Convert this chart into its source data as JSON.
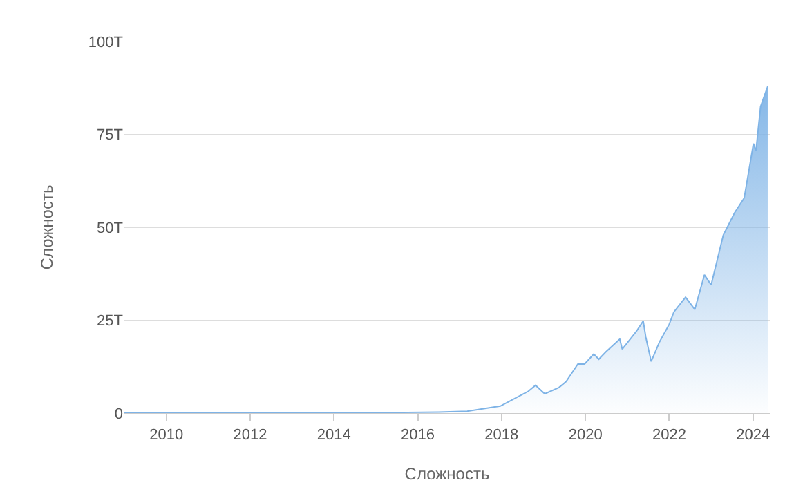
{
  "chart_data": {
    "type": "area",
    "ylabel": "Сложность",
    "xlabel": "Сложность",
    "x": [
      2009.0,
      2012.0,
      2015.0,
      2016.5,
      2017.18,
      2017.97,
      2018.64,
      2018.81,
      2019.03,
      2019.37,
      2019.54,
      2019.82,
      2019.98,
      2020.2,
      2020.32,
      2020.49,
      2020.82,
      2020.88,
      2021.21,
      2021.38,
      2021.44,
      2021.57,
      2021.77,
      2022.0,
      2022.11,
      2022.39,
      2022.61,
      2022.84,
      2023.0,
      2023.29,
      2023.56,
      2023.79,
      2024.01,
      2024.07,
      2024.18,
      2024.35
    ],
    "series": [
      {
        "color": "#7eb3e6",
        "values": [
          0,
          0,
          0.1,
          0.3,
          0.5,
          1.9,
          5.9,
          7.5,
          5.2,
          6.9,
          8.5,
          13.2,
          13.2,
          15.9,
          14.5,
          16.5,
          19.9,
          17.2,
          21.9,
          24.8,
          20.5,
          13.9,
          19.2,
          23.9,
          27.2,
          31.2,
          27.9,
          37.2,
          34.5,
          47.9,
          53.9,
          57.9,
          72.5,
          70.5,
          82.5,
          87.9
        ]
      }
    ],
    "xlim": [
      2009.0,
      2024.4
    ],
    "ylim": [
      0,
      100
    ],
    "xticks": [
      2010,
      2012,
      2014,
      2016,
      2018,
      2020,
      2022,
      2024
    ],
    "yticks": [
      0,
      {
        "value": 25,
        "label": "25T"
      },
      {
        "value": 50,
        "label": "50T"
      },
      {
        "value": 75,
        "label": "75T"
      },
      {
        "value": 100,
        "label": "100T"
      }
    ],
    "grid": "y",
    "legend": false
  }
}
